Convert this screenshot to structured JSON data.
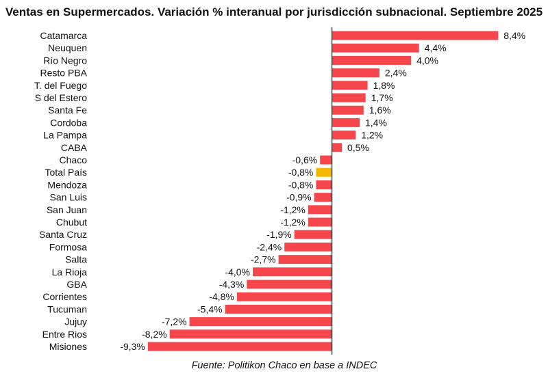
{
  "chart_data": {
    "type": "bar",
    "orientation": "horizontal",
    "title": "Ventas en Supermercados. Variación % interanual por jurisdicción subnacional. Septiembre 2025",
    "categories": [
      "Catamarca",
      "Neuquen",
      "Río Negro",
      "Resto PBA",
      "T. del Fuego",
      "S del Estero",
      "Santa Fe",
      "Cordoba",
      "La Pampa",
      "CABA",
      "Chaco",
      "Total País",
      "Mendoza",
      "San Luis",
      "San Juan",
      "Chubut",
      "Santa Cruz",
      "Formosa",
      "Salta",
      "La Rioja",
      "GBA",
      "Corrientes",
      "Tucuman",
      "Jujuy",
      "Entre Rios",
      "Misiones"
    ],
    "values": [
      8.4,
      4.4,
      4.0,
      2.4,
      1.8,
      1.7,
      1.6,
      1.4,
      1.2,
      0.5,
      -0.6,
      -0.8,
      -0.8,
      -0.9,
      -1.2,
      -1.2,
      -1.9,
      -2.4,
      -2.7,
      -4.0,
      -4.3,
      -4.8,
      -5.4,
      -7.2,
      -8.2,
      -9.3
    ],
    "value_labels": [
      "8,4%",
      "4,4%",
      "4,0%",
      "2,4%",
      "1,8%",
      "1,7%",
      "1,6%",
      "1,4%",
      "1,2%",
      "0,5%",
      "-0,6%",
      "-0,8%",
      "-0,8%",
      "-0,9%",
      "-1,2%",
      "-1,2%",
      "-1,9%",
      "-2,4%",
      "-2,7%",
      "-4,0%",
      "-4,3%",
      "-4,8%",
      "-5,4%",
      "-7,2%",
      "-8,2%",
      "-9,3%"
    ],
    "highlight_category": "Total País",
    "xlim": [
      -10.3,
      8.6
    ],
    "grid": false,
    "legend": "none",
    "source": "Fuente: Politikon Chaco en base a INDEC",
    "colors": {
      "bar": "#f5464b",
      "highlight": "#f5b800",
      "axis": "#222222"
    }
  }
}
